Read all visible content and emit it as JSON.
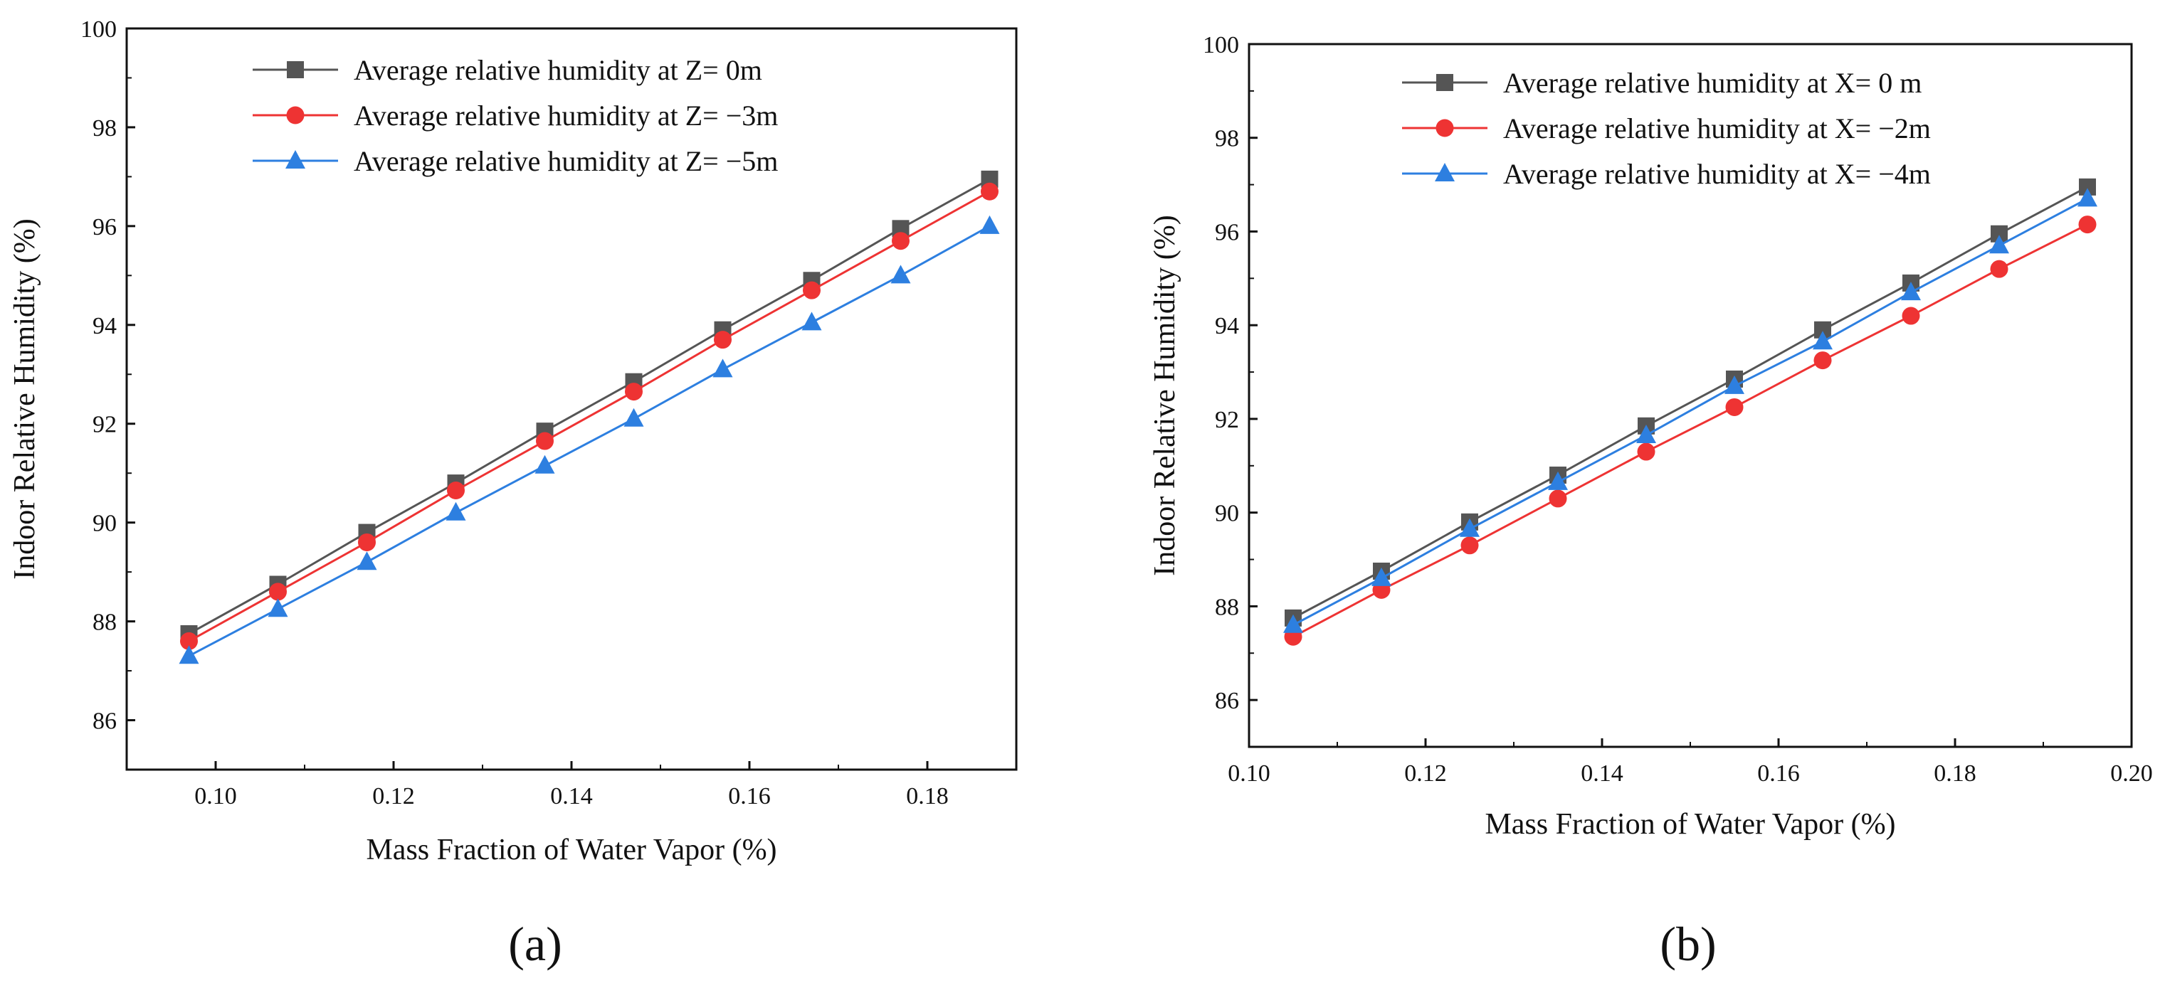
{
  "chart_data": [
    {
      "type": "line",
      "panel_label": "(a)",
      "xlabel": "Mass Fraction of Water Vapor (%)",
      "ylabel": "Indoor Relative Humidity (%)",
      "xlim": [
        0.09,
        0.19
      ],
      "ylim": [
        85,
        100
      ],
      "xticks": [
        "0.10",
        "0.12",
        "0.14",
        "0.16",
        "0.18"
      ],
      "yticks": [
        "86",
        "88",
        "90",
        "92",
        "94",
        "96",
        "98",
        "100"
      ],
      "legend_position": "top-left",
      "x": [
        0.097,
        0.107,
        0.117,
        0.127,
        0.137,
        0.147,
        0.157,
        0.167,
        0.177,
        0.187
      ],
      "series": [
        {
          "name": "Average relative humidity at Z= 0m",
          "color": "#555555",
          "marker": "square",
          "values": [
            87.75,
            88.75,
            89.8,
            90.8,
            91.85,
            92.85,
            93.9,
            94.9,
            95.95,
            96.95
          ]
        },
        {
          "name": "Average relative humidity at Z= −3m",
          "color": "#ee3333",
          "marker": "circle",
          "values": [
            87.6,
            88.6,
            89.6,
            90.65,
            91.65,
            92.65,
            93.7,
            94.7,
            95.7,
            96.7
          ]
        },
        {
          "name": "Average relative humidity at Z= −5m",
          "color": "#2d7fe0",
          "marker": "triangle",
          "values": [
            87.3,
            88.25,
            89.2,
            90.2,
            91.15,
            92.1,
            93.1,
            94.05,
            95.0,
            96.0
          ]
        }
      ]
    },
    {
      "type": "line",
      "panel_label": "(b)",
      "xlabel": "Mass Fraction of Water Vapor (%)",
      "ylabel": "Indoor Relative Humidity (%)",
      "xlim": [
        0.1,
        0.2
      ],
      "ylim": [
        85,
        100
      ],
      "xticks": [
        "0.10",
        "0.12",
        "0.14",
        "0.16",
        "0.18",
        "0.20"
      ],
      "yticks": [
        "86",
        "88",
        "90",
        "92",
        "94",
        "96",
        "98",
        "100"
      ],
      "legend_position": "top-left",
      "x": [
        0.105,
        0.115,
        0.125,
        0.135,
        0.145,
        0.155,
        0.165,
        0.175,
        0.185,
        0.195
      ],
      "series": [
        {
          "name": "Average relative humidity at X=  0 m",
          "color": "#555555",
          "marker": "square",
          "values": [
            87.75,
            88.75,
            89.8,
            90.8,
            91.85,
            92.85,
            93.9,
            94.9,
            95.95,
            96.95
          ]
        },
        {
          "name": "Average relative humidity at X= −2m",
          "color": "#ee3333",
          "marker": "circle",
          "values": [
            87.35,
            88.35,
            89.3,
            90.3,
            91.3,
            92.25,
            93.25,
            94.2,
            95.2,
            96.15
          ]
        },
        {
          "name": "Average relative humidity at X= −4m",
          "color": "#2d7fe0",
          "marker": "triangle",
          "values": [
            87.6,
            88.6,
            89.65,
            90.65,
            91.65,
            92.7,
            93.65,
            94.7,
            95.7,
            96.7
          ]
        }
      ]
    }
  ]
}
